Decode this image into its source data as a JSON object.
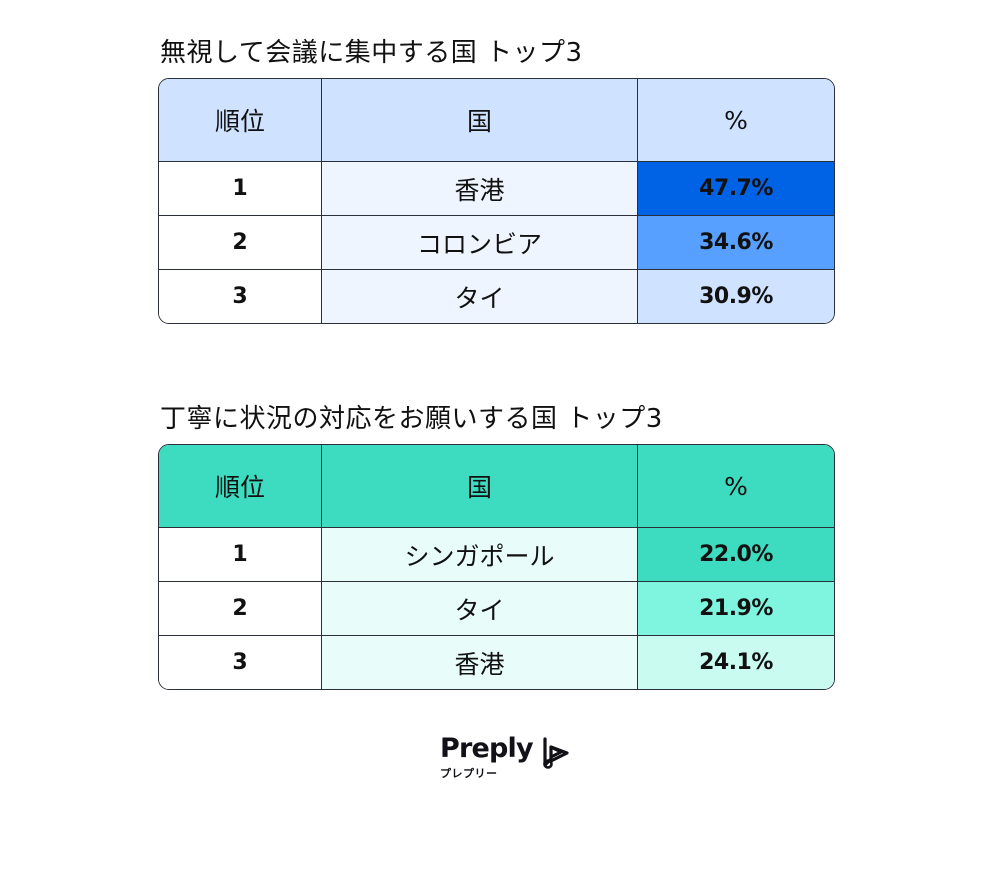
{
  "tables": [
    {
      "title": "無視して会議に集中する国 トップ3",
      "headers": [
        "順位",
        "国",
        "%"
      ],
      "header_color": "#cfe2ff",
      "country_bg": "#eef5ff",
      "rows": [
        {
          "rank": "1",
          "country": "香港",
          "value": "47.7%",
          "color": "#0062e5"
        },
        {
          "rank": "2",
          "country": "コロンビア",
          "value": "34.6%",
          "color": "#57a0ff"
        },
        {
          "rank": "3",
          "country": "タイ",
          "value": "30.9%",
          "color": "#cfe2ff"
        }
      ]
    },
    {
      "title": "丁寧に状況の対応をお願いする国 トップ3",
      "headers": [
        "順位",
        "国",
        "%"
      ],
      "header_color": "#3ddbbf",
      "country_bg": "#e8fdf9",
      "rows": [
        {
          "rank": "1",
          "country": "シンガポール",
          "value": "22.0%",
          "color": "#3ddbbf"
        },
        {
          "rank": "2",
          "country": "タイ",
          "value": "21.9%",
          "color": "#7ff5df"
        },
        {
          "rank": "3",
          "country": "香港",
          "value": "24.1%",
          "color": "#c9fbf1"
        }
      ]
    }
  ],
  "chart_data": [
    {
      "type": "table",
      "title": "無視して会議に集中する国 トップ3",
      "columns": [
        "順位",
        "国",
        "%"
      ],
      "rows": [
        [
          "1",
          "香港",
          47.7
        ],
        [
          "2",
          "コロンビア",
          34.6
        ],
        [
          "3",
          "タイ",
          30.9
        ]
      ]
    },
    {
      "type": "table",
      "title": "丁寧に状況の対応をお願いする国 トップ3",
      "columns": [
        "順位",
        "国",
        "%"
      ],
      "rows": [
        [
          "1",
          "シンガポール",
          22.0
        ],
        [
          "2",
          "タイ",
          21.9
        ],
        [
          "3",
          "香港",
          24.1
        ]
      ]
    }
  ],
  "logo": {
    "wordmark": "Preply",
    "subtitle": "プレプリー",
    "icon": "preply-logo-icon"
  }
}
